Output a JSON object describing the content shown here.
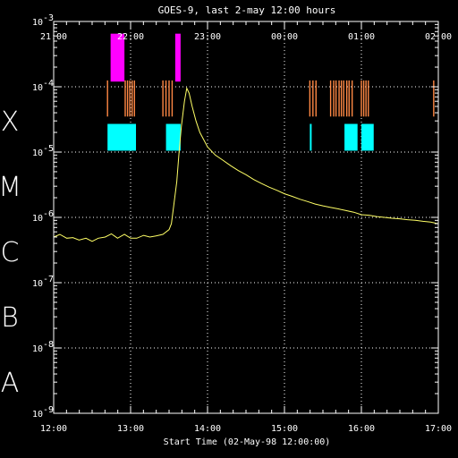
{
  "chart_data": {
    "type": "line",
    "title": "GOES-9, last 2-may 12:00 hours",
    "xlabel": "Start Time (02-May-98 12:00:00)",
    "ylabel": "",
    "y_scale": "log",
    "ylim": [
      1e-09,
      0.001
    ],
    "xlim_hours": [
      12.0,
      17.0
    ],
    "x_tick_labels": [
      "12:00",
      "13:00",
      "14:00",
      "15:00",
      "16:00",
      "17:00"
    ],
    "x_ticks_hours": [
      12,
      13,
      14,
      15,
      16,
      17
    ],
    "top_tick_labels": [
      "21:00",
      "22:00",
      "23:00",
      "00:00",
      "01:00",
      "02:00"
    ],
    "y_tick_labels": [
      {
        "mantissa": "10",
        "exp": "-9"
      },
      {
        "mantissa": "10",
        "exp": "-8"
      },
      {
        "mantissa": "10",
        "exp": "-7"
      },
      {
        "mantissa": "10",
        "exp": "-6"
      },
      {
        "mantissa": "10",
        "exp": "-5"
      },
      {
        "mantissa": "10",
        "exp": "-4"
      },
      {
        "mantissa": "10",
        "exp": "-3"
      }
    ],
    "y_ticks": [
      1e-09,
      1e-08,
      1e-07,
      1e-06,
      1e-05,
      0.0001,
      0.001
    ],
    "class_labels": [
      {
        "label": "A",
        "center": 3e-09
      },
      {
        "label": "B",
        "center": 3e-08
      },
      {
        "label": "C",
        "center": 3e-07
      },
      {
        "label": "M",
        "center": 3e-06
      },
      {
        "label": "X",
        "center": 3e-05
      }
    ],
    "grid": true,
    "series": [
      {
        "color": "#ffff66",
        "x": [
          12.0,
          12.08,
          12.17,
          12.25,
          12.33,
          12.42,
          12.5,
          12.58,
          12.67,
          12.75,
          12.83,
          12.92,
          13.0,
          13.08,
          13.17,
          13.25,
          13.33,
          13.42,
          13.5,
          13.53,
          13.56,
          13.6,
          13.63,
          13.66,
          13.7,
          13.73,
          13.76,
          13.8,
          13.85,
          13.9,
          14.0,
          14.1,
          14.2,
          14.3,
          14.4,
          14.5,
          14.6,
          14.7,
          14.8,
          14.9,
          15.0,
          15.1,
          15.2,
          15.3,
          15.4,
          15.5,
          15.6,
          15.7,
          15.8,
          15.9,
          16.0,
          16.1,
          16.2,
          16.3,
          16.4,
          16.5,
          16.6,
          16.7,
          16.8,
          16.9,
          17.0
        ],
        "y": [
          5e-07,
          5.5e-07,
          4.8e-07,
          4.9e-07,
          4.5e-07,
          4.8e-07,
          4.3e-07,
          4.8e-07,
          5e-07,
          5.6e-07,
          4.8e-07,
          5.5e-07,
          4.8e-07,
          4.8e-07,
          5.3e-07,
          5e-07,
          5.2e-07,
          5.5e-07,
          6.5e-07,
          8e-07,
          1.5e-06,
          3.5e-06,
          1e-05,
          2.5e-05,
          6e-05,
          9.5e-05,
          8e-05,
          5e-05,
          3e-05,
          2e-05,
          1.2e-05,
          9e-06,
          7.5e-06,
          6.2e-06,
          5.2e-06,
          4.5e-06,
          3.8e-06,
          3.3e-06,
          2.9e-06,
          2.6e-06,
          2.3e-06,
          2.1e-06,
          1.9e-06,
          1.75e-06,
          1.6e-06,
          1.5e-06,
          1.42e-06,
          1.35e-06,
          1.27e-06,
          1.2e-06,
          1.1e-06,
          1.08e-06,
          1.03e-06,
          1e-06,
          9.7e-07,
          9.5e-07,
          9.2e-07,
          9e-07,
          8.7e-07,
          8.5e-07,
          8e-07
        ]
      }
    ],
    "event_rows": [
      {
        "name": "magenta",
        "color": "#ff00ff",
        "y_range": [
          0.00012,
          0.00065
        ],
        "intervals": [
          [
            12.74,
            12.92
          ],
          [
            13.58,
            13.65
          ]
        ]
      },
      {
        "name": "orange",
        "color": "#ff8844",
        "y_range": [
          3.5e-05,
          0.000125
        ],
        "ticks_hours": [
          12.7,
          12.93,
          12.96,
          12.99,
          13.02,
          13.05,
          13.42,
          13.46,
          13.5,
          13.54,
          15.33,
          15.37,
          15.41,
          15.6,
          15.64,
          15.67,
          15.71,
          15.74,
          15.77,
          15.81,
          15.84,
          15.88,
          16.0,
          16.03,
          16.06,
          16.09,
          16.94
        ]
      },
      {
        "name": "cyan",
        "color": "#00ffff",
        "y_range": [
          1.05e-05,
          2.7e-05
        ],
        "intervals": [
          [
            12.7,
            13.07
          ],
          [
            13.46,
            13.65
          ],
          [
            15.33,
            15.345
          ],
          [
            15.78,
            15.95
          ],
          [
            16.0,
            16.16
          ]
        ]
      }
    ]
  }
}
